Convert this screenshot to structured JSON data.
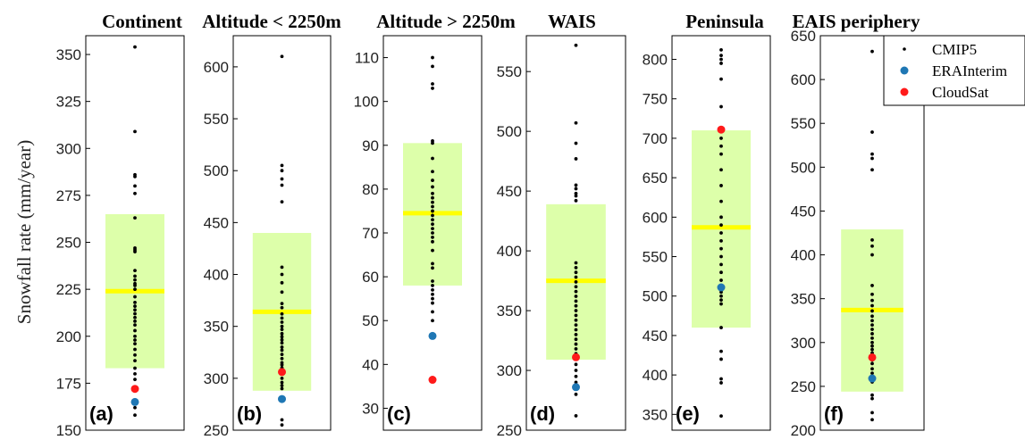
{
  "ylabel": "Snowfall rate (mm/year)",
  "colors": {
    "cmip5": "#000000",
    "erainterim": "#1f77b4",
    "cloudsat": "#ff1a1a",
    "range_fill": "#ddffaa",
    "mean_line": "#ffff00"
  },
  "legend": {
    "location": "top-right",
    "items": [
      {
        "label": "CMIP5",
        "marker": "small-dot",
        "color": "#000000"
      },
      {
        "label": "ERAInterim",
        "marker": "dot",
        "color": "#1f77b4"
      },
      {
        "label": "CloudSat",
        "marker": "dot",
        "color": "#ff1a1a"
      }
    ]
  },
  "chart_data": [
    {
      "type": "scatter",
      "panel": "(a)",
      "title": "Continent",
      "ylim": [
        150,
        360
      ],
      "yticks": [
        150,
        175,
        200,
        225,
        250,
        275,
        300,
        325,
        350
      ],
      "cmip5": [
        354,
        309,
        286,
        285,
        280,
        276,
        263,
        247,
        246,
        245,
        235,
        232,
        230,
        228,
        227,
        225,
        221,
        218,
        216,
        214,
        212,
        210,
        208,
        206,
        203,
        200,
        198,
        196,
        193,
        190,
        187,
        183,
        180,
        177,
        162,
        158
      ],
      "mean": 224,
      "range": [
        183,
        265
      ],
      "erainterim": 165,
      "cloudsat": 172
    },
    {
      "type": "scatter",
      "panel": "(b)",
      "title": "Altitude < 2250m",
      "ylim": [
        250,
        630
      ],
      "yticks": [
        250,
        300,
        350,
        400,
        450,
        500,
        550,
        600
      ],
      "cmip5": [
        610,
        505,
        500,
        492,
        486,
        470,
        407,
        400,
        392,
        383,
        372,
        368,
        362,
        358,
        354,
        350,
        347,
        343,
        340,
        337,
        334,
        330,
        327,
        323,
        319,
        315,
        313,
        310,
        305,
        300,
        296,
        293,
        290,
        260,
        255
      ],
      "mean": 364,
      "range": [
        288,
        440
      ],
      "erainterim": 280,
      "cloudsat": 306
    },
    {
      "type": "scatter",
      "panel": "(c)",
      "title": "Altitude > 2250m",
      "ylim": [
        25,
        115
      ],
      "yticks": [
        30,
        40,
        50,
        60,
        70,
        80,
        90,
        100,
        110
      ],
      "cmip5": [
        110,
        108,
        104,
        103,
        91,
        90.5,
        87,
        84,
        82,
        80.5,
        79,
        78,
        77,
        76,
        75,
        74,
        73,
        72,
        71,
        70,
        69,
        68,
        66,
        63,
        62,
        59,
        58,
        57,
        56,
        55,
        54,
        52,
        50
      ],
      "mean": 74.5,
      "range": [
        58,
        90.5
      ],
      "erainterim": 46.5,
      "cloudsat": 36.5
    },
    {
      "type": "scatter",
      "panel": "(d)",
      "title": "WAIS",
      "ylim": [
        250,
        580
      ],
      "yticks": [
        250,
        300,
        350,
        400,
        450,
        500,
        550
      ],
      "cmip5": [
        572,
        507,
        490,
        477,
        455,
        452,
        448,
        446,
        442,
        390,
        386,
        382,
        378,
        374,
        370,
        366,
        362,
        358,
        354,
        350,
        346,
        342,
        338,
        334,
        330,
        326,
        322,
        318,
        314,
        305,
        300,
        295,
        290,
        280,
        262
      ],
      "mean": 375,
      "range": [
        309,
        439
      ],
      "erainterim": 286,
      "cloudsat": 311
    },
    {
      "type": "scatter",
      "panel": "(e)",
      "title": "Peninsula",
      "ylim": [
        330,
        830
      ],
      "yticks": [
        350,
        400,
        450,
        500,
        550,
        600,
        650,
        700,
        750,
        800
      ],
      "cmip5": [
        812,
        805,
        800,
        795,
        775,
        740,
        710,
        700,
        690,
        680,
        660,
        640,
        620,
        600,
        590,
        580,
        570,
        560,
        550,
        540,
        530,
        520,
        510,
        505,
        500,
        495,
        490,
        460,
        430,
        420,
        395,
        390,
        348
      ],
      "mean": 587,
      "range": [
        460,
        710
      ],
      "erainterim": 511,
      "cloudsat": 711
    },
    {
      "type": "scatter",
      "panel": "(f)",
      "title": "EAIS periphery",
      "ylim": [
        200,
        650
      ],
      "yticks": [
        200,
        250,
        300,
        350,
        400,
        450,
        500,
        550,
        600,
        650
      ],
      "cmip5": [
        632,
        540,
        515,
        510,
        497,
        417,
        410,
        400,
        365,
        355,
        348,
        342,
        336,
        330,
        325,
        320,
        315,
        310,
        305,
        300,
        296,
        292,
        288,
        284,
        280,
        276,
        270,
        265,
        260,
        255,
        240,
        236,
        220,
        212
      ],
      "mean": 337,
      "range": [
        244,
        429
      ],
      "erainterim": 259,
      "cloudsat": 283
    }
  ]
}
